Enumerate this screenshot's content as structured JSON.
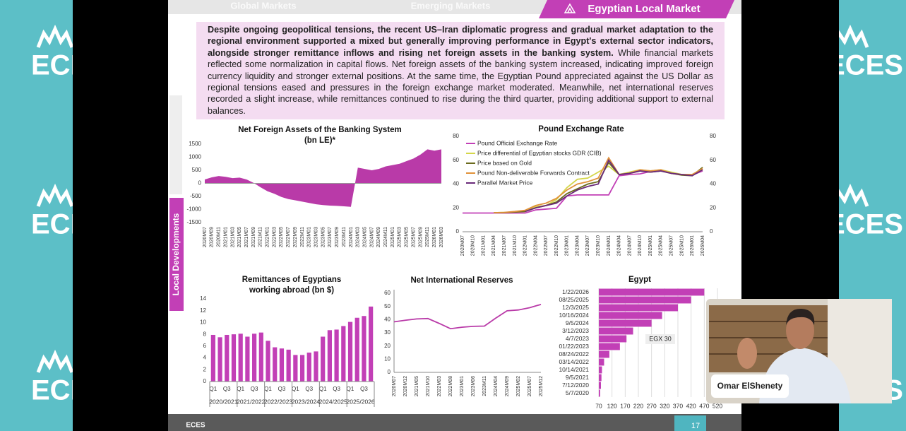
{
  "branding": {
    "logo": "ECES",
    "page_number": "17"
  },
  "tabs": [
    "Global Markets",
    "Emerging Markets",
    "Egyptian Local Market"
  ],
  "paragraph": {
    "bold": "Despite ongoing geopolitical tensions, the recent US–Iran diplomatic progress and gradual market adaptation to the regional environment supported a mixed but generally improving performance in Egypt's external sector indicators, alongside stronger remittance inflows and rising net foreign assets in the banking system.",
    "regular": "While financial markets reflected some normalization in capital flows. Net foreign assets of the banking system increased, indicating improved foreign currency liquidity and stronger external positions. At the same time, the Egyptian Pound appreciated against the US Dollar as regional tensions eased and pressures in the foreign exchange market moderated. Meanwhile, net international reserves recorded a slight increase, while remittances continued to rise during the third quarter, providing additional support to external balances."
  },
  "side_label": "Local Developments",
  "video": {
    "name": "Omar ElShenety"
  },
  "chart_data": [
    {
      "type": "area",
      "title": "Net Foreign Assets of the Banking System",
      "subtitle": "(bn LE)*",
      "color": "#b93aa8",
      "categories": [
        "2020M07",
        "2020M09",
        "2020M11",
        "2021M01",
        "2021M03",
        "2021M05",
        "2021M07",
        "2021M09",
        "2021M11",
        "2022M01",
        "2022M03",
        "2022M05",
        "2022M07",
        "2022M09",
        "2022M11",
        "2023M01",
        "2023M03",
        "2023M05",
        "2023M07",
        "2023M09",
        "2023M11",
        "2024M01",
        "2024M03",
        "2024M05",
        "2024M07",
        "2024M09",
        "2024M11",
        "2025M01",
        "2025M03",
        "2025M05",
        "2025M07",
        "2025M09",
        "2025M11",
        "2026M01",
        "2026M03"
      ],
      "values": [
        150,
        230,
        280,
        250,
        200,
        220,
        150,
        20,
        -150,
        -300,
        -400,
        -520,
        -600,
        -650,
        -700,
        -750,
        -800,
        -830,
        -850,
        -860,
        -880,
        -900,
        600,
        550,
        500,
        550,
        650,
        700,
        750,
        850,
        950,
        1100,
        1300,
        1250,
        1300
      ],
      "ylim": [
        -1500,
        1500
      ],
      "yticks": [
        -1500,
        -1000,
        -500,
        0,
        500,
        1000,
        1500
      ]
    },
    {
      "type": "line",
      "title": "Pound Exchange Rate",
      "legend": "top-left",
      "categories": [
        "2020M07",
        "2020M10",
        "2021M01",
        "2021M04",
        "2021M07",
        "2021M10",
        "2022M01",
        "2022M04",
        "2022M07",
        "2022M10",
        "2023M01",
        "2023M04",
        "2023M07",
        "2023M10",
        "2024M01",
        "2024M04",
        "2024M07",
        "2024M10",
        "2025M01",
        "2025M04",
        "2025M07",
        "2025M10",
        "2026M01",
        "2026M04"
      ],
      "series": [
        {
          "name": "Pound Official Exchange Rate",
          "color": "#c23fb6",
          "values": [
            15.7,
            15.7,
            15.7,
            15.7,
            15.7,
            15.7,
            15.7,
            18.3,
            19,
            19.7,
            30,
            30.9,
            30.9,
            30.9,
            30.9,
            47,
            48,
            48.5,
            50.5,
            51,
            49.5,
            47.8,
            47.5,
            51
          ]
        },
        {
          "name": "Price differential of Egyptian stocks GDR (CIB)",
          "color": "#d4d64a",
          "values": [
            null,
            null,
            null,
            16,
            16.2,
            16.5,
            17,
            21,
            22,
            27,
            37,
            44,
            45,
            50,
            55,
            48,
            50,
            52,
            51,
            52,
            50,
            48,
            48,
            52
          ]
        },
        {
          "name": "Price based on Gold",
          "color": "#6b6b1e",
          "values": [
            null,
            null,
            null,
            16,
            16,
            16.5,
            17,
            20,
            22,
            25,
            32,
            36,
            40,
            42,
            58,
            48,
            49,
            51,
            50,
            51,
            49,
            47.5,
            47,
            54
          ]
        },
        {
          "name": "Pound Non-deliverable Forwards Contract",
          "color": "#e0923a",
          "values": [
            null,
            null,
            null,
            16,
            16.2,
            17,
            18,
            22,
            24,
            28,
            35,
            40,
            42,
            45,
            62,
            48,
            49,
            52,
            51,
            52,
            49,
            48,
            48,
            53
          ]
        },
        {
          "name": "Parallel Market Price",
          "color": "#6a2a7a",
          "values": [
            null,
            null,
            null,
            null,
            null,
            null,
            17,
            20,
            22,
            24,
            30,
            35,
            38,
            40,
            60,
            48,
            49,
            51,
            50,
            51,
            49,
            48,
            47,
            52
          ]
        }
      ],
      "ylim": [
        0,
        80
      ],
      "yticks": [
        0,
        20,
        40,
        60,
        80
      ],
      "y2lim": [
        0,
        80
      ],
      "y2ticks": [
        0,
        20,
        40,
        60,
        80
      ]
    },
    {
      "type": "bar",
      "title": "Remittances of Egyptians",
      "subtitle": "working abroad (bn $)",
      "color": "#c23fb6",
      "categories": [
        "Q1",
        null,
        "Q3",
        null,
        "Q1",
        null,
        "Q3",
        null,
        "Q1",
        null,
        "Q3",
        null,
        "Q1",
        null,
        "Q3",
        null,
        "Q1",
        null,
        "Q3",
        null,
        "Q1",
        null,
        "Q3",
        null
      ],
      "groups": [
        "2020/2021",
        "2021/2022",
        "2022/2023",
        "2023/2024",
        "2024/2025",
        "2025/2026"
      ],
      "values": [
        7.9,
        7.5,
        7.9,
        8.0,
        8.1,
        7.6,
        8.1,
        8.3,
        6.9,
        5.8,
        5.6,
        5.4,
        4.5,
        4.5,
        4.9,
        5.1,
        7.6,
        8.7,
        8.8,
        9.4,
        10.1,
        10.8,
        11.1,
        12.7
      ],
      "ylim": [
        0,
        14
      ],
      "yticks": [
        0,
        2,
        4,
        6,
        8,
        10,
        12,
        14
      ]
    },
    {
      "type": "line",
      "title": "Net International Reserves",
      "color": "#b93aa8",
      "categories": [
        "2020M07",
        "2020M12",
        "2021M05",
        "2021M10",
        "2022M03",
        "2022M08",
        "2023M01",
        "2023M06",
        "2023M11",
        "2024M04",
        "2024M09",
        "2025M02",
        "2025M07",
        "2025M12"
      ],
      "values": [
        38.3,
        39.5,
        40.5,
        40.8,
        37.1,
        33.1,
        34.2,
        34.9,
        35.1,
        41.1,
        46.7,
        47.3,
        49,
        51.5
      ],
      "ylim": [
        0,
        60
      ],
      "yticks": [
        0,
        10,
        20,
        30,
        40,
        50,
        60
      ]
    },
    {
      "type": "hbar",
      "title": "Egypt",
      "color": "#c23fb6",
      "annotation": "EGX 30",
      "grid": true,
      "categories": [
        "1/22/2026",
        "08/25/2025",
        "12/3/2025",
        "10/16/2024",
        "9/5/2024",
        "3/12/2023",
        "4/7/2023",
        "01/22/2023",
        "08/24/2022",
        "03/14/2022",
        "10/14/2021",
        "9/5/2021",
        "7/12/2020",
        "5/7/2020"
      ],
      "values": [
        470,
        420,
        370,
        310,
        270,
        200,
        175,
        150,
        110,
        90,
        82,
        80,
        78,
        75
      ],
      "xlim": [
        70,
        520
      ],
      "xticks": [
        70,
        120,
        170,
        220,
        270,
        320,
        370,
        420,
        470,
        520
      ]
    }
  ]
}
